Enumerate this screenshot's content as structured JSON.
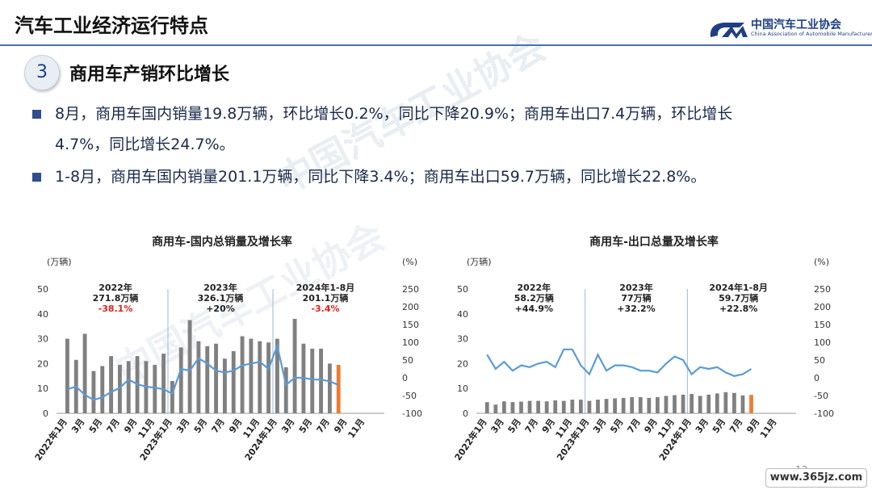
{
  "slide": {
    "title": "汽车工业经济运行特点",
    "logo_cn": "中国汽车工业协会",
    "logo_en": "China Association of Automobile Manufacturers",
    "section_number": "3",
    "section_title": "商用车产销环比增长",
    "bullets": [
      {
        "line1": "8月，商用车国内销量19.8万辆，环比增长0.2%，同比下降20.9%；商用车出口7.4万辆，环比增长",
        "line2": "4.7%，同比增长24.7%。"
      },
      {
        "line1": "1-8月，商用车国内销量201.1万辆，同比下降3.4%；商用车出口59.7万辆，同比增长22.8%。",
        "line2": ""
      }
    ],
    "watermark": "中国汽车工业协会",
    "page_number": "13",
    "site_watermark": "www.365jz.com"
  },
  "colors": {
    "bar": "#808080",
    "bar_highlight": "#ed7d31",
    "line": "#5b9bd5",
    "negative": "#e02020",
    "brand": "#1f3f84"
  },
  "chart_data": [
    {
      "type": "bar",
      "title": "商用车-国内总销量及增长率",
      "ylabel": "(万辆)",
      "y2label": "(%)",
      "ylim": [
        0,
        50
      ],
      "y2lim": [
        -100,
        250
      ],
      "yticks": [
        "0",
        "10",
        "20",
        "30",
        "40",
        "50"
      ],
      "y2ticks": [
        "-100",
        "-50",
        "0",
        "50",
        "100",
        "150",
        "200",
        "250"
      ],
      "x_tick_labels": [
        "2022年1月",
        "3月",
        "5月",
        "7月",
        "9月",
        "11月",
        "2023年1月",
        "3月",
        "5月",
        "7月",
        "9月",
        "11月",
        "2024年1月",
        "3月",
        "5月",
        "7月",
        "9月",
        "11月"
      ],
      "grid": false,
      "legend": "none",
      "annotations": [
        {
          "year": "2022年",
          "total": "271.8万辆",
          "growth": "-38.1%",
          "negative": true
        },
        {
          "year": "2023年",
          "total": "326.1万辆",
          "growth": "+20%",
          "negative": false
        },
        {
          "year": "2024年1-8月",
          "total": "201.1万辆",
          "growth": "-3.4%",
          "negative": true
        }
      ],
      "series": [
        {
          "values": [
            30,
            21.5,
            32,
            17,
            19,
            23,
            19.5,
            21,
            23,
            21,
            19.5,
            24,
            13,
            26.5,
            37.5,
            29,
            27,
            28,
            22,
            25,
            31,
            30,
            29,
            28.5,
            30,
            18.5,
            38,
            28,
            26,
            26,
            20,
            19.5
          ]
        },
        {
          "values": [
            -32,
            -25,
            -48,
            -62,
            -55,
            -40,
            -28,
            -5,
            -18,
            -25,
            -28,
            -32,
            -45,
            25,
            20,
            55,
            40,
            20,
            15,
            20,
            35,
            40,
            45,
            25,
            90,
            -20,
            0,
            0,
            -5,
            -5,
            -10,
            -20
          ]
        }
      ]
    },
    {
      "type": "bar",
      "title": "商用车-出口总量及增长率",
      "ylabel": "(万辆)",
      "y2label": "(%)",
      "ylim": [
        0,
        50
      ],
      "y2lim": [
        -100,
        250
      ],
      "yticks": [
        "0",
        "10",
        "20",
        "30",
        "40",
        "50"
      ],
      "y2ticks": [
        "-100",
        "-50",
        "0",
        "50",
        "100",
        "150",
        "200",
        "250"
      ],
      "x_tick_labels": [
        "2022年1月",
        "3月",
        "5月",
        "7月",
        "9月",
        "11月",
        "2023年1月",
        "3月",
        "5月",
        "7月",
        "9月",
        "11月",
        "2024年1月",
        "3月",
        "5月",
        "7月",
        "9月",
        "11月"
      ],
      "grid": false,
      "legend": "none",
      "annotations": [
        {
          "year": "2022年",
          "total": "58.2万辆",
          "growth": "+44.9%",
          "negative": false
        },
        {
          "year": "2023年",
          "total": "77万辆",
          "growth": "+32.2%",
          "negative": false
        },
        {
          "year": "2024年1-8月",
          "total": "59.7万辆",
          "growth": "+22.8%",
          "negative": false
        }
      ],
      "series": [
        {
          "values": [
            4.5,
            3.5,
            4.8,
            4.5,
            4.7,
            5.0,
            5.0,
            4.8,
            5.2,
            5.0,
            5.5,
            5.5,
            5.0,
            5.5,
            5.8,
            6.0,
            6.2,
            6.5,
            6.5,
            6.2,
            6.5,
            7.0,
            7.3,
            7.5,
            7.8,
            7.0,
            7.5,
            8.0,
            8.5,
            8.2,
            7.2,
            7.4
          ]
        },
        {
          "values": [
            65,
            25,
            45,
            20,
            35,
            30,
            40,
            45,
            30,
            80,
            80,
            35,
            10,
            65,
            20,
            35,
            35,
            30,
            20,
            20,
            15,
            40,
            60,
            50,
            10,
            30,
            25,
            30,
            15,
            5,
            10,
            25
          ]
        }
      ]
    }
  ]
}
